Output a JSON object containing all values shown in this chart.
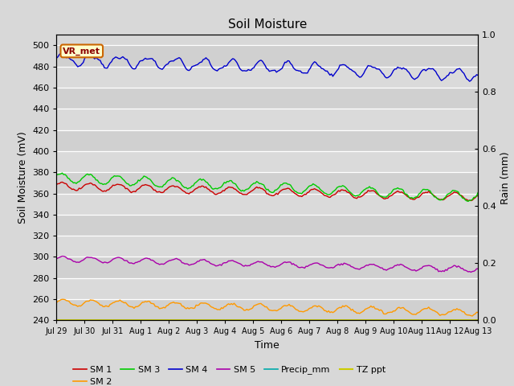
{
  "title": "Soil Moisture",
  "xlabel": "Time",
  "ylabel_left": "Soil Moisture (mV)",
  "ylabel_right": "Rain (mm)",
  "ylim_left": [
    240,
    510
  ],
  "ylim_right": [
    0.0,
    1.0
  ],
  "yticks_left": [
    240,
    260,
    280,
    300,
    320,
    340,
    360,
    380,
    400,
    420,
    440,
    460,
    480,
    500
  ],
  "yticks_right": [
    0.0,
    0.2,
    0.4,
    0.6,
    0.8,
    1.0
  ],
  "bg_color": "#d8d8d8",
  "n_points": 300,
  "sm1_color": "#cc0000",
  "sm2_color": "#ff9900",
  "sm3_color": "#00cc00",
  "sm4_color": "#0000cc",
  "sm5_color": "#aa00aa",
  "precip_color": "#00aaaa",
  "tz_color": "#cccc00",
  "annotation_text": "VR_met",
  "annotation_bg": "#ffffcc",
  "annotation_border": "#cc6600",
  "tick_labels": [
    "Jul 29",
    "Jul 30",
    "Jul 31",
    "Aug 1",
    "Aug 2",
    "Aug 3",
    "Aug 4",
    "Aug 5",
    "Aug 6",
    "Aug 7",
    "Aug 8",
    "Aug 9",
    "Aug 10",
    "Aug 11",
    "Aug 12",
    "Aug 13"
  ]
}
